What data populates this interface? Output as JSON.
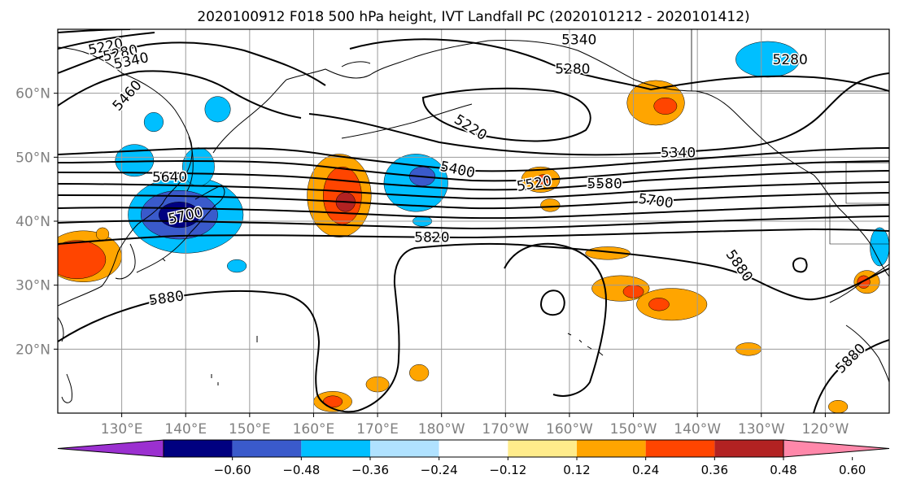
{
  "title": "2020100912 F018 500 hPa height, IVT Landfall PC (2020101212 - 2020101412)",
  "map": {
    "lon_range": [
      120,
      250
    ],
    "lat_range": [
      10,
      70
    ],
    "grid_color": "#9a9a9a",
    "tick_color": "#808080",
    "lat_ticks": [
      {
        "value": 20,
        "label": "20°N"
      },
      {
        "value": 30,
        "label": "30°N"
      },
      {
        "value": 40,
        "label": "40°N"
      },
      {
        "value": 50,
        "label": "50°N"
      },
      {
        "value": 60,
        "label": "60°N"
      }
    ],
    "lon_ticks": [
      {
        "value": 130,
        "label": "130°E"
      },
      {
        "value": 140,
        "label": "140°E"
      },
      {
        "value": 150,
        "label": "150°E"
      },
      {
        "value": 160,
        "label": "160°E"
      },
      {
        "value": 170,
        "label": "170°E"
      },
      {
        "value": 180,
        "label": "180°W"
      },
      {
        "value": 190,
        "label": "170°W"
      },
      {
        "value": 200,
        "label": "160°W"
      },
      {
        "value": 210,
        "label": "150°W"
      },
      {
        "value": 220,
        "label": "140°W"
      },
      {
        "value": 230,
        "label": "130°W"
      },
      {
        "value": 240,
        "label": "120°W"
      }
    ]
  },
  "contour_labels": [
    {
      "text": "5220",
      "lon": 127.5,
      "lat": 67.2,
      "rot": -12
    },
    {
      "text": "5280",
      "lon": 129.8,
      "lat": 66.2,
      "rot": -12
    },
    {
      "text": "5340",
      "lon": 131.5,
      "lat": 65.0,
      "rot": -12
    },
    {
      "text": "5460",
      "lon": 130.9,
      "lat": 59.6,
      "rot": -48
    },
    {
      "text": "5340",
      "lon": 201.5,
      "lat": 68.3,
      "rot": 0
    },
    {
      "text": "5280",
      "lon": 200.5,
      "lat": 63.7,
      "rot": 0
    },
    {
      "text": "5280",
      "lon": 234.5,
      "lat": 65.2,
      "rot": 0
    },
    {
      "text": "5220",
      "lon": 184.5,
      "lat": 54.6,
      "rot": 32
    },
    {
      "text": "5340",
      "lon": 217.0,
      "lat": 50.6,
      "rot": 0
    },
    {
      "text": "5400",
      "lon": 182.5,
      "lat": 48.0,
      "rot": 12
    },
    {
      "text": "5520",
      "lon": 194.5,
      "lat": 45.8,
      "rot": -10
    },
    {
      "text": "5580",
      "lon": 205.5,
      "lat": 45.8,
      "rot": 0
    },
    {
      "text": "5700",
      "lon": 213.5,
      "lat": 43.1,
      "rot": 8
    },
    {
      "text": "5640",
      "lon": 137.5,
      "lat": 46.8,
      "rot": 0
    },
    {
      "text": "5700",
      "lon": 140.0,
      "lat": 40.8,
      "rot": -12
    },
    {
      "text": "5820",
      "lon": 178.5,
      "lat": 37.4,
      "rot": 0
    },
    {
      "text": "5880",
      "lon": 226.5,
      "lat": 33.0,
      "rot": 55
    },
    {
      "text": "5880",
      "lon": 137.0,
      "lat": 27.9,
      "rot": -8
    },
    {
      "text": "5880",
      "lon": 244.0,
      "lat": 18.5,
      "rot": -45
    }
  ],
  "colorbar": {
    "colors": [
      "#9b30d0",
      "#000080",
      "#3a5acb",
      "#00bfff",
      "#b0e2ff",
      "#ffffff",
      "#ffec8b",
      "#ffa500",
      "#ff4500",
      "#b22222",
      "#ff88aa"
    ],
    "ticks": [
      "−0.60",
      "−0.48",
      "−0.36",
      "−0.24",
      "−0.12",
      "0.12",
      "0.24",
      "0.36",
      "0.48",
      "0.60"
    ]
  },
  "shading": [
    {
      "lon": 140,
      "lat": 41,
      "rx": 9,
      "ry": 6,
      "fill": "#00bfff"
    },
    {
      "lon": 139,
      "lat": 41,
      "rx": 6,
      "ry": 3.8,
      "fill": "#3a5acb"
    },
    {
      "lon": 139,
      "lat": 41,
      "rx": 3.2,
      "ry": 2,
      "fill": "#000080"
    },
    {
      "lon": 132,
      "lat": 49.5,
      "rx": 3,
      "ry": 2.5,
      "fill": "#00bfff"
    },
    {
      "lon": 142,
      "lat": 48.5,
      "rx": 2.5,
      "ry": 3,
      "fill": "#00bfff"
    },
    {
      "lon": 145,
      "lat": 57.5,
      "rx": 2,
      "ry": 2,
      "fill": "#00bfff"
    },
    {
      "lon": 135,
      "lat": 55.5,
      "rx": 1.5,
      "ry": 1.5,
      "fill": "#00bfff"
    },
    {
      "lon": 148,
      "lat": 33,
      "rx": 1.5,
      "ry": 1,
      "fill": "#00bfff"
    },
    {
      "lon": 176,
      "lat": 46,
      "rx": 5,
      "ry": 4.5,
      "fill": "#00bfff"
    },
    {
      "lon": 177,
      "lat": 47,
      "rx": 2,
      "ry": 1.5,
      "fill": "#3a5acb"
    },
    {
      "lon": 177,
      "lat": 40,
      "rx": 1.5,
      "ry": 0.8,
      "fill": "#00bfff"
    },
    {
      "lon": 231,
      "lat": 65.3,
      "rx": 5,
      "ry": 2.8,
      "fill": "#00bfff"
    },
    {
      "lon": 248.5,
      "lat": 36,
      "rx": 1.5,
      "ry": 3,
      "fill": "#00bfff"
    },
    {
      "lon": 164,
      "lat": 44,
      "rx": 5,
      "ry": 6.5,
      "fill": "#ffa500"
    },
    {
      "lon": 164.5,
      "lat": 44,
      "rx": 3,
      "ry": 4.5,
      "fill": "#ff4500"
    },
    {
      "lon": 165,
      "lat": 43,
      "rx": 1.5,
      "ry": 1.5,
      "fill": "#b22222"
    },
    {
      "lon": 124,
      "lat": 34.5,
      "rx": 6,
      "ry": 4,
      "fill": "#ffa500"
    },
    {
      "lon": 123,
      "lat": 34,
      "rx": 4.5,
      "ry": 3,
      "fill": "#ff4500"
    },
    {
      "lon": 213.5,
      "lat": 58.5,
      "rx": 4.5,
      "ry": 3.5,
      "fill": "#ffa500"
    },
    {
      "lon": 215,
      "lat": 58,
      "rx": 1.8,
      "ry": 1.3,
      "fill": "#ff4500"
    },
    {
      "lon": 195.5,
      "lat": 46.5,
      "rx": 3,
      "ry": 2,
      "fill": "#ffa500"
    },
    {
      "lon": 196,
      "lat": 46.5,
      "rx": 1.2,
      "ry": 0.8,
      "fill": "#ff4500"
    },
    {
      "lon": 208,
      "lat": 29.5,
      "rx": 4.5,
      "ry": 2,
      "fill": "#ffa500"
    },
    {
      "lon": 216,
      "lat": 27,
      "rx": 5.5,
      "ry": 2.5,
      "fill": "#ffa500"
    },
    {
      "lon": 214,
      "lat": 27,
      "rx": 1.6,
      "ry": 1,
      "fill": "#ff4500"
    },
    {
      "lon": 210,
      "lat": 29,
      "rx": 1.6,
      "ry": 1,
      "fill": "#ff4500"
    },
    {
      "lon": 206,
      "lat": 35,
      "rx": 3.5,
      "ry": 1,
      "fill": "#ffa500"
    },
    {
      "lon": 246.5,
      "lat": 30.5,
      "rx": 2,
      "ry": 1.8,
      "fill": "#ffa500"
    },
    {
      "lon": 246,
      "lat": 30.5,
      "rx": 1,
      "ry": 1,
      "fill": "#ff4500"
    },
    {
      "lon": 163,
      "lat": 11.8,
      "rx": 3,
      "ry": 1.6,
      "fill": "#ffa500"
    },
    {
      "lon": 163,
      "lat": 11.8,
      "rx": 1.5,
      "ry": 0.9,
      "fill": "#ff4500"
    },
    {
      "lon": 170,
      "lat": 14.5,
      "rx": 1.8,
      "ry": 1.2,
      "fill": "#ffa500"
    },
    {
      "lon": 176.5,
      "lat": 16.3,
      "rx": 1.5,
      "ry": 1.3,
      "fill": "#ffa500"
    },
    {
      "lon": 197,
      "lat": 42.5,
      "rx": 1.5,
      "ry": 1,
      "fill": "#ffa500"
    },
    {
      "lon": 228,
      "lat": 20,
      "rx": 2,
      "ry": 1,
      "fill": "#ffa500"
    },
    {
      "lon": 242,
      "lat": 11,
      "rx": 1.5,
      "ry": 1,
      "fill": "#ffa500"
    },
    {
      "lon": 127,
      "lat": 38,
      "rx": 1,
      "ry": 1,
      "fill": "#ffa500"
    }
  ]
}
